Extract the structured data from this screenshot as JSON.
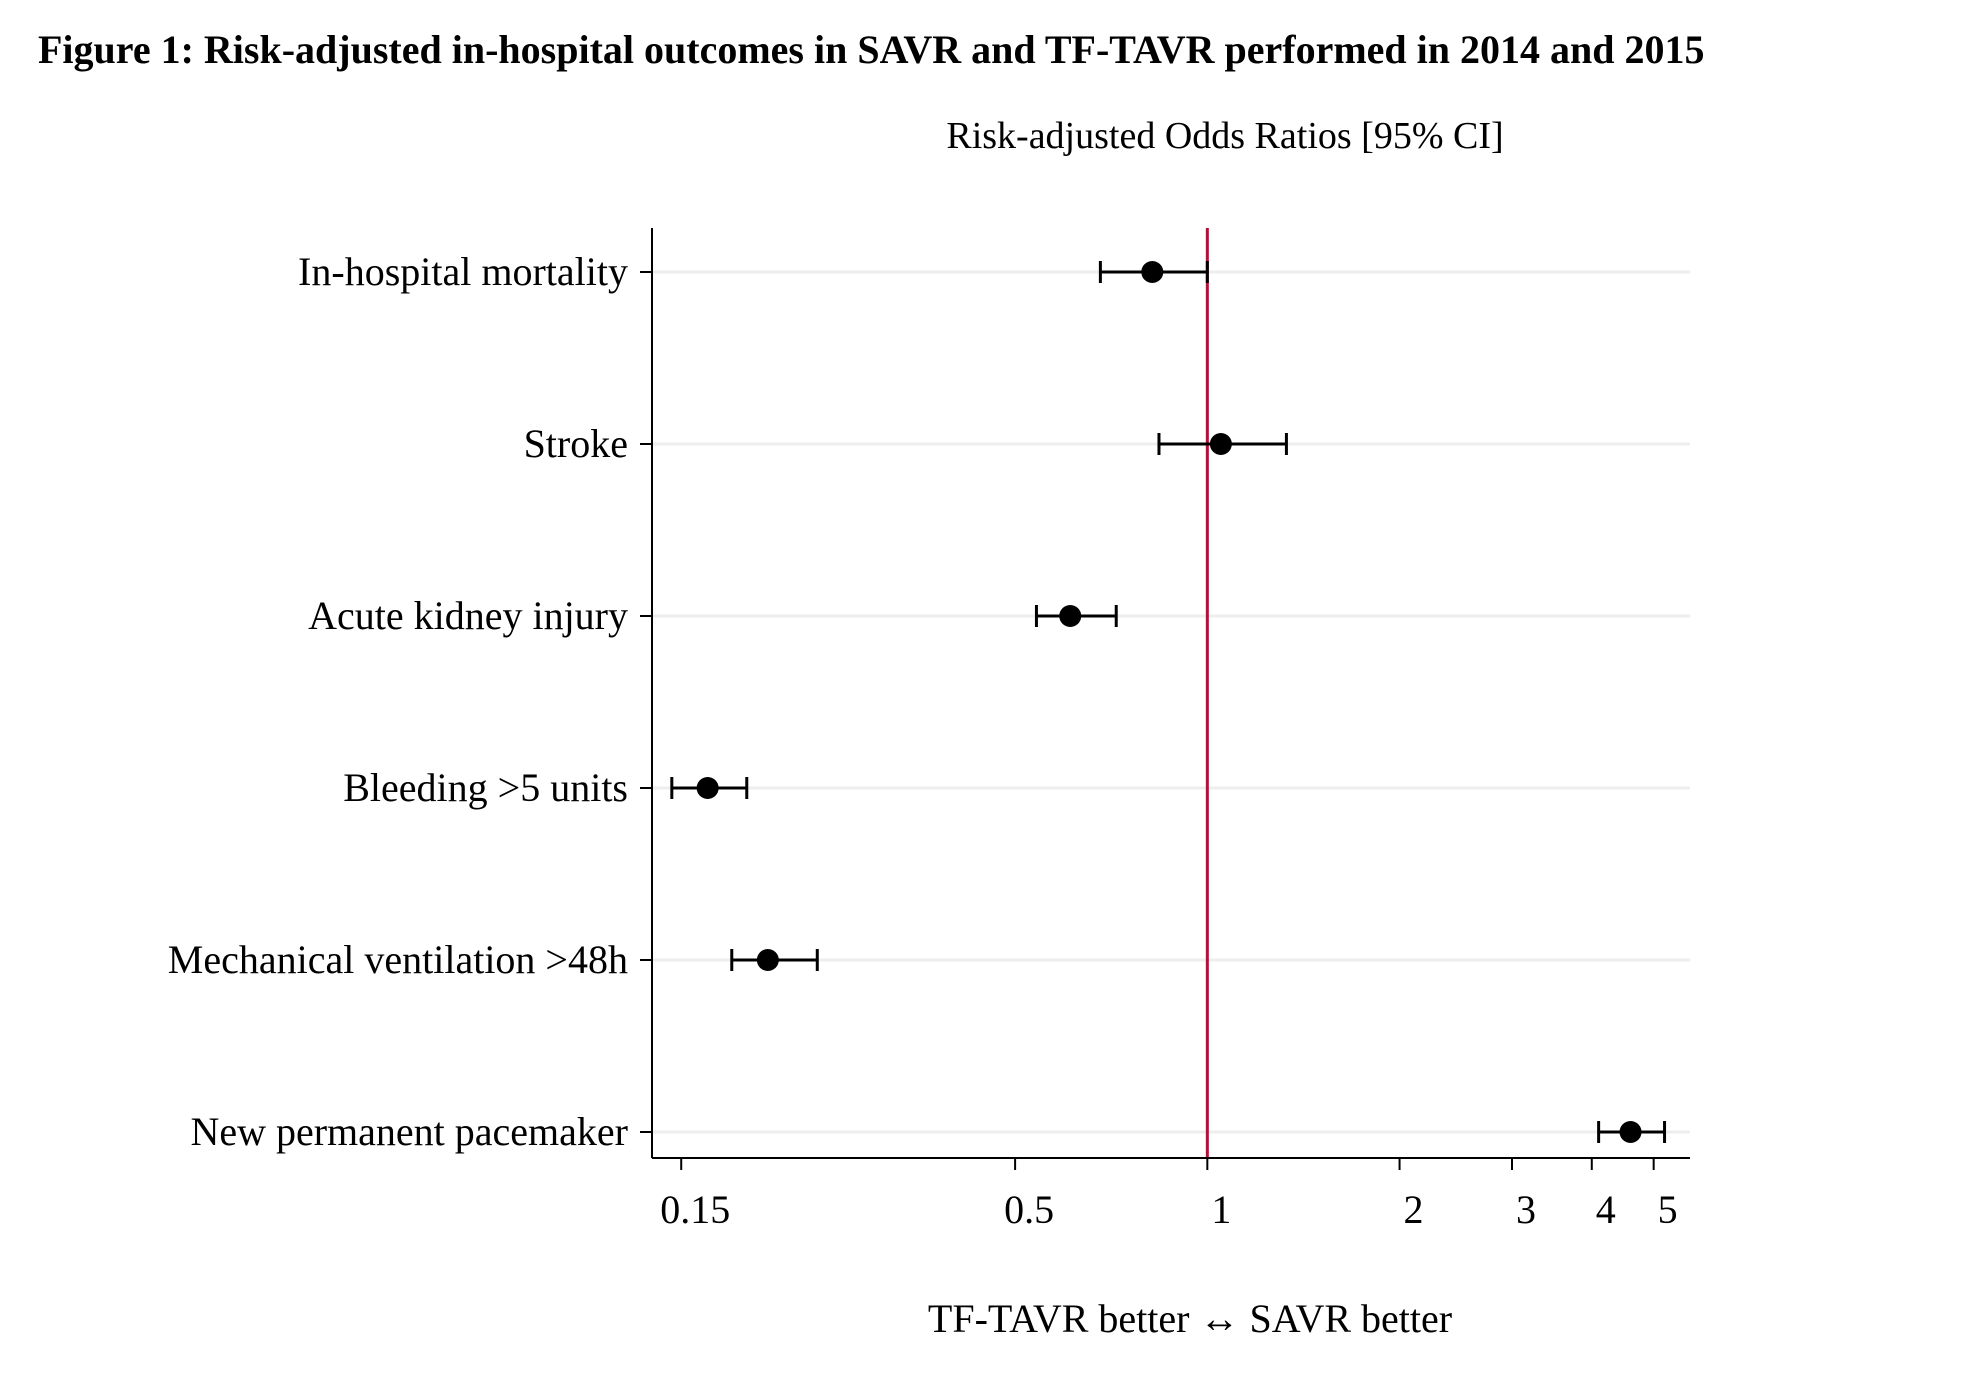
{
  "figure_title": "Figure 1: Risk-adjusted in-hospital outcomes in SAVR and TF-TAVR performed in 2014 and 2015",
  "colors": {
    "reference_line": "#b0103a",
    "markers": "#000000",
    "gridline": "#eeeeee"
  },
  "chart_data": {
    "type": "forest",
    "title": "Risk-adjusted Odds Ratios [95% CI]",
    "xlabel": "TF-TAVR better ↔ SAVR better",
    "xscale": "log",
    "xlim": [
      0.135,
      5.7
    ],
    "xticks": [
      0.15,
      0.5,
      1,
      2,
      3,
      4,
      5
    ],
    "xtick_labels": [
      "0.15",
      "0.5",
      "1",
      "2",
      "3",
      "4",
      "5"
    ],
    "reference_value": 1,
    "grid": true,
    "categories": [
      "In-hospital mortality",
      "Stroke",
      "Acute kidney injury",
      "Bleeding >5 units",
      "Mechanical ventilation >48h",
      "New permanent pacemaker"
    ],
    "estimates": [
      0.82,
      1.05,
      0.61,
      0.165,
      0.205,
      4.6
    ],
    "ci_lower": [
      0.68,
      0.84,
      0.54,
      0.145,
      0.18,
      4.1
    ],
    "ci_upper": [
      1.0,
      1.33,
      0.72,
      0.19,
      0.245,
      5.2
    ]
  }
}
